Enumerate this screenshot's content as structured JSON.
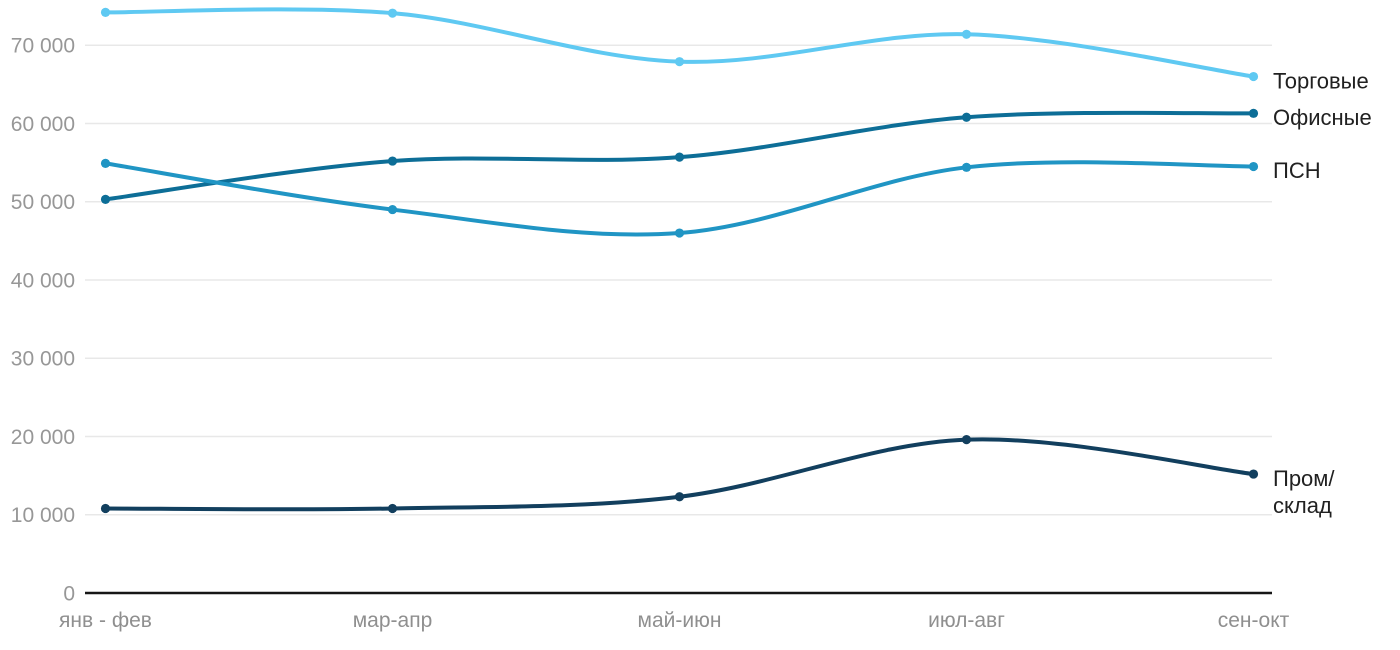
{
  "chart_data": {
    "type": "line",
    "title": "",
    "xlabel": "",
    "ylabel": "",
    "categories": [
      "янв - фев",
      "мар-апр",
      "май-июн",
      "июл-авг",
      "сен-окт"
    ],
    "series": [
      {
        "id": "retail",
        "name": "Торговые",
        "label_lines": [
          "Торговые"
        ],
        "color": "#5fc9f2",
        "values": [
          74200,
          74100,
          67900,
          71400,
          66000
        ]
      },
      {
        "id": "office",
        "name": "Офисные",
        "label_lines": [
          "Офисные"
        ],
        "color": "#0d6e97",
        "values": [
          50300,
          55200,
          55700,
          60800,
          61300
        ]
      },
      {
        "id": "psn",
        "name": "ПСН",
        "label_lines": [
          "ПСН"
        ],
        "color": "#2095c4",
        "values": [
          54900,
          49000,
          46000,
          54400,
          54500
        ]
      },
      {
        "id": "industrial-warehouse",
        "name": "Пром/склад",
        "label_lines": [
          "Пром/",
          "склад"
        ],
        "color": "#123f5e",
        "values": [
          10800,
          10800,
          12300,
          19600,
          15200
        ]
      }
    ],
    "y_ticks": [
      {
        "value": 0,
        "label": "0"
      },
      {
        "value": 10000,
        "label": "10 000"
      },
      {
        "value": 20000,
        "label": "20 000"
      },
      {
        "value": 30000,
        "label": "30 000"
      },
      {
        "value": 40000,
        "label": "40 000"
      },
      {
        "value": 50000,
        "label": "50 000"
      },
      {
        "value": 60000,
        "label": "60 000"
      },
      {
        "value": 70000,
        "label": "70 000"
      }
    ],
    "ylim": [
      0,
      74500
    ],
    "grid": true,
    "legend_position": "right-of-line-ends"
  },
  "colors": {
    "background": "#ffffff",
    "gridline": "#e8e8e8",
    "axis_line": "#161616",
    "tick_text": "#979797",
    "series_label_text": "#212121"
  }
}
